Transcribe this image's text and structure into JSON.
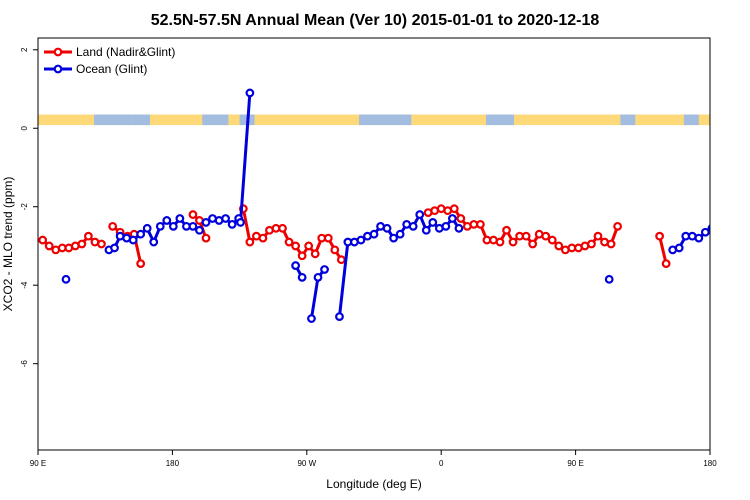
{
  "chart_data": {
    "type": "line",
    "title": "52.5N-57.5N Annual Mean (Ver 10)   2015-01-01 to 2020-12-18",
    "xlabel": "Longitude (deg E)",
    "ylabel": "XCO2 - MLO trend (ppm)",
    "xlim": [
      90,
      450
    ],
    "ylim": [
      -8.2,
      2.3
    ],
    "xticks": [
      {
        "value": 90,
        "label": "90 E"
      },
      {
        "value": 162,
        "label": "180"
      },
      {
        "value": 234,
        "label": "90 W"
      },
      {
        "value": 306,
        "label": "0"
      },
      {
        "value": 378,
        "label": "90 E"
      },
      {
        "value": 450,
        "label": "180"
      }
    ],
    "yticks": [
      {
        "value": 2,
        "label": "2"
      },
      {
        "value": 0,
        "label": "0"
      },
      {
        "value": -2,
        "label": "-2"
      },
      {
        "value": -4,
        "label": "-4"
      },
      {
        "value": -6,
        "label": "-6"
      }
    ],
    "legend_position": "top-left",
    "land_strip": {
      "y_top": 0.35,
      "y_bottom": 0.08,
      "land_color": "#fdd97a",
      "ocean_color": "#a3bde0"
    },
    "series": [
      {
        "name": "Land (Nadir&Glint)",
        "color": "#ee0000",
        "segments": [
          [
            [
              92.5,
              -2.85
            ],
            [
              96,
              -3.0
            ],
            [
              99.5,
              -3.1
            ],
            [
              103,
              -3.05
            ],
            [
              106.5,
              -3.05
            ],
            [
              110,
              -3.0
            ],
            [
              113.5,
              -2.95
            ],
            [
              117,
              -2.75
            ],
            [
              120.5,
              -2.9
            ],
            [
              124,
              -2.95
            ]
          ],
          [
            [
              130,
              -2.5
            ],
            [
              134,
              -2.65
            ],
            [
              138,
              -2.75
            ],
            [
              141.5,
              -2.7
            ],
            [
              145,
              -3.45
            ]
          ],
          [
            [
              173,
              -2.2
            ],
            [
              176.5,
              -2.35
            ],
            [
              180,
              -2.8
            ]
          ],
          [
            [
              200,
              -2.05
            ],
            [
              203.5,
              -2.9
            ],
            [
              207,
              -2.75
            ],
            [
              210.5,
              -2.8
            ],
            [
              214,
              -2.6
            ],
            [
              217.5,
              -2.55
            ],
            [
              221,
              -2.55
            ],
            [
              224.5,
              -2.9
            ],
            [
              228,
              -3.0
            ],
            [
              231.5,
              -3.25
            ],
            [
              235,
              -3.0
            ],
            [
              238.5,
              -3.2
            ],
            [
              242,
              -2.8
            ],
            [
              245.5,
              -2.8
            ],
            [
              249,
              -3.1
            ],
            [
              252.5,
              -3.35
            ]
          ],
          [
            [
              299,
              -2.15
            ],
            [
              302.5,
              -2.1
            ],
            [
              306,
              -2.05
            ],
            [
              309.5,
              -2.1
            ],
            [
              313,
              -2.05
            ],
            [
              316.5,
              -2.3
            ],
            [
              320,
              -2.5
            ],
            [
              323.5,
              -2.45
            ],
            [
              327,
              -2.45
            ],
            [
              330.5,
              -2.85
            ],
            [
              334,
              -2.85
            ],
            [
              337.5,
              -2.9
            ],
            [
              341,
              -2.6
            ],
            [
              344.5,
              -2.9
            ],
            [
              348,
              -2.75
            ],
            [
              351.5,
              -2.75
            ],
            [
              355,
              -2.95
            ],
            [
              358.5,
              -2.7
            ],
            [
              362,
              -2.75
            ],
            [
              365.5,
              -2.85
            ],
            [
              369,
              -3.0
            ],
            [
              372.5,
              -3.1
            ],
            [
              376,
              -3.05
            ],
            [
              379.5,
              -3.05
            ],
            [
              383,
              -3.0
            ],
            [
              386.5,
              -2.95
            ],
            [
              390,
              -2.75
            ],
            [
              393.5,
              -2.9
            ],
            [
              397,
              -2.95
            ],
            [
              400.5,
              -2.5
            ]
          ],
          [
            [
              423,
              -2.75
            ],
            [
              426.5,
              -3.45
            ]
          ]
        ]
      },
      {
        "name": "Ocean (Glint)",
        "color": "#0000dd",
        "segments": [
          [
            [
              105,
              -3.85
            ]
          ],
          [
            [
              128,
              -3.1
            ],
            [
              131,
              -3.05
            ],
            [
              134,
              -2.75
            ],
            [
              137.5,
              -2.8
            ],
            [
              141,
              -2.85
            ],
            [
              145,
              -2.7
            ],
            [
              148.5,
              -2.55
            ],
            [
              152,
              -2.9
            ],
            [
              155.5,
              -2.5
            ],
            [
              159,
              -2.35
            ],
            [
              162.5,
              -2.5
            ],
            [
              166,
              -2.3
            ],
            [
              169.5,
              -2.5
            ],
            [
              173,
              -2.5
            ],
            [
              176.5,
              -2.6
            ]
          ],
          [
            [
              180,
              -2.4
            ],
            [
              183.5,
              -2.3
            ],
            [
              187,
              -2.35
            ],
            [
              190.5,
              -2.3
            ],
            [
              194,
              -2.45
            ],
            [
              197.5,
              -2.3
            ]
          ],
          [
            [
              203.5,
              0.9
            ],
            [
              198.5,
              -2.4
            ]
          ],
          [
            [
              228,
              -3.5
            ],
            [
              231.5,
              -3.8
            ]
          ],
          [
            [
              236.5,
              -4.85
            ],
            [
              240,
              -3.8
            ],
            [
              243.5,
              -3.6
            ]
          ],
          [
            [
              251.5,
              -4.8
            ],
            [
              256,
              -2.9
            ],
            [
              259.5,
              -2.9
            ],
            [
              263,
              -2.85
            ],
            [
              266.5,
              -2.75
            ],
            [
              270,
              -2.7
            ],
            [
              273.5,
              -2.5
            ],
            [
              277,
              -2.55
            ],
            [
              280.5,
              -2.8
            ],
            [
              284,
              -2.7
            ],
            [
              287.5,
              -2.45
            ],
            [
              291,
              -2.5
            ],
            [
              294.5,
              -2.2
            ],
            [
              298,
              -2.6
            ],
            [
              301.5,
              -2.4
            ],
            [
              305,
              -2.55
            ],
            [
              308.5,
              -2.5
            ],
            [
              312,
              -2.3
            ],
            [
              315.5,
              -2.55
            ]
          ],
          [
            [
              396,
              -3.85
            ]
          ],
          [
            [
              430,
              -3.1
            ],
            [
              433.5,
              -3.05
            ],
            [
              437,
              -2.75
            ],
            [
              440.5,
              -2.75
            ],
            [
              444,
              -2.8
            ],
            [
              447.5,
              -2.65
            ],
            [
              451,
              -2.55
            ],
            [
              454.5,
              -2.9
            ],
            [
              458,
              -2.5
            ]
          ]
        ]
      }
    ]
  }
}
